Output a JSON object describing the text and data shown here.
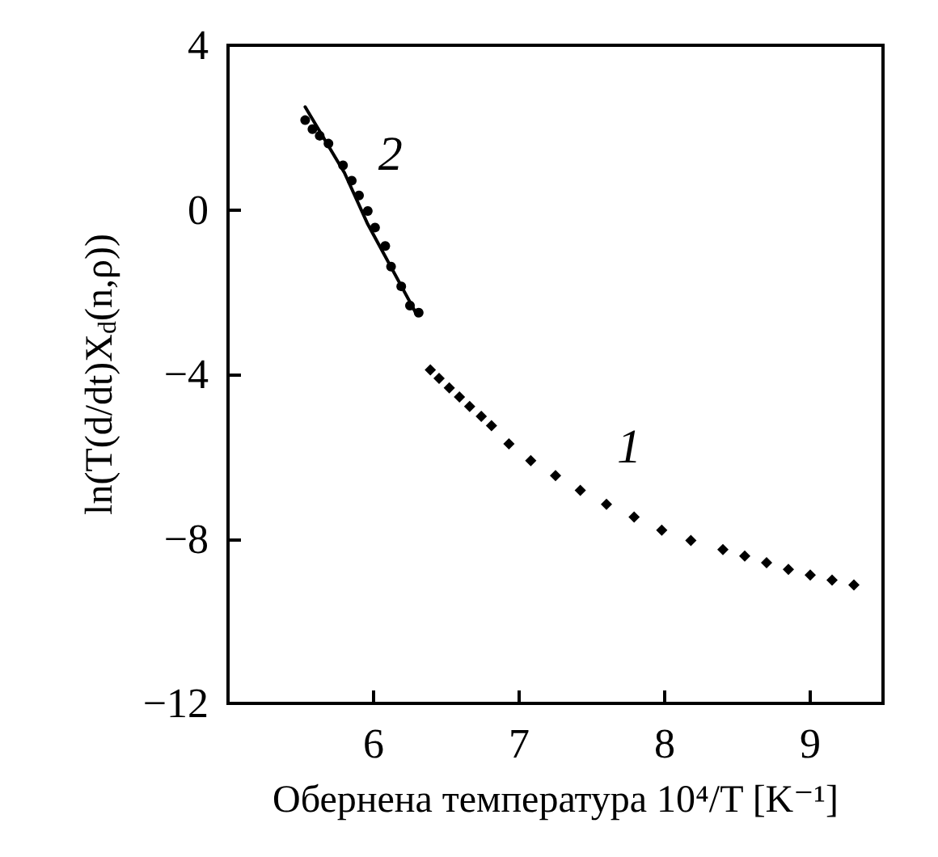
{
  "chart_data": {
    "type": "scatter",
    "xlabel": "Обернена температура 10⁴/T [K⁻¹]",
    "ylabel": "ln(T(d/dt)X$_{d}$(n,ρ))",
    "xlim": [
      5,
      9.5
    ],
    "xticks": [
      6,
      7,
      8,
      9
    ],
    "ylim": [
      -12,
      4
    ],
    "yticks": [
      -12,
      -8,
      -4,
      0,
      4
    ],
    "series": [
      {
        "name": "1",
        "marker": "diamond",
        "color": "#000000",
        "x": [
          6.39,
          6.45,
          6.52,
          6.59,
          6.66,
          6.74,
          6.81,
          6.93,
          7.08,
          7.25,
          7.42,
          7.6,
          7.79,
          7.98,
          8.18,
          8.4,
          8.55,
          8.7,
          8.85,
          9.0,
          9.15,
          9.3
        ],
        "values": [
          -3.89,
          -4.1,
          -4.33,
          -4.55,
          -4.78,
          -5.02,
          -5.25,
          -5.69,
          -6.1,
          -6.46,
          -6.82,
          -7.16,
          -7.47,
          -7.79,
          -8.04,
          -8.26,
          -8.42,
          -8.58,
          -8.74,
          -8.88,
          -9.0,
          -9.12
        ]
      },
      {
        "name": "2",
        "marker": "circle",
        "color": "#000000",
        "x": [
          5.53,
          5.58,
          5.63,
          5.69,
          5.79,
          5.85,
          5.9,
          5.96,
          6.01,
          6.08,
          6.12,
          6.19,
          6.25,
          6.31
        ],
        "values": [
          2.18,
          1.96,
          1.8,
          1.61,
          1.08,
          0.71,
          0.35,
          -0.03,
          -0.43,
          -0.88,
          -1.38,
          -1.86,
          -2.33,
          -2.5
        ]
      },
      {
        "type": "line",
        "marker": "none",
        "line_style": "solid",
        "color": "#000000",
        "x": [
          5.53,
          5.8,
          5.96,
          6.3
        ],
        "values": [
          2.5,
          0.9,
          -0.35,
          -2.57
        ]
      }
    ]
  }
}
